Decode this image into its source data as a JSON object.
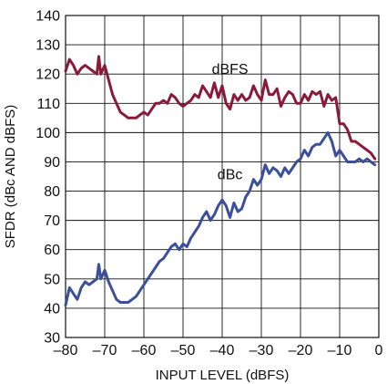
{
  "chart_data": {
    "type": "line",
    "xlabel": "INPUT LEVEL (dBFS)",
    "ylabel": "SFDR (dBc AND dBFS)",
    "xlim": [
      -80,
      0
    ],
    "ylim": [
      30,
      140
    ],
    "xticks": [
      -80,
      -70,
      -60,
      -50,
      -40,
      -30,
      -20,
      -10,
      0
    ],
    "xtick_labels": [
      "–80",
      "–70",
      "–60",
      "–50",
      "–40",
      "–30",
      "–20",
      "–10",
      "0"
    ],
    "yticks": [
      30,
      40,
      50,
      60,
      70,
      80,
      90,
      100,
      110,
      120,
      130,
      140
    ],
    "ytick_labels": [
      "30",
      "40",
      "50",
      "60",
      "70",
      "80",
      "90",
      "100",
      "110",
      "120",
      "130",
      "140"
    ],
    "grid": true,
    "series": [
      {
        "name": "dBFS",
        "color": "#8b1a3a",
        "label_at": [
          -38,
          120
        ],
        "x": [
          -80,
          -79,
          -78,
          -77,
          -76,
          -75,
          -74,
          -73,
          -72,
          -71.5,
          -71,
          -70,
          -69,
          -68,
          -67,
          -66,
          -65,
          -64,
          -63,
          -62,
          -61,
          -60,
          -59,
          -58,
          -57,
          -56,
          -55,
          -54,
          -53,
          -52,
          -51,
          -50,
          -49,
          -48,
          -47,
          -46,
          -45,
          -44,
          -43,
          -42,
          -41,
          -40,
          -39,
          -38,
          -37,
          -36,
          -35,
          -34,
          -33,
          -32,
          -31,
          -30,
          -29,
          -28,
          -27,
          -26,
          -25,
          -24,
          -23,
          -22,
          -21,
          -20,
          -19,
          -18,
          -17,
          -16,
          -15,
          -14,
          -13,
          -12,
          -11,
          -10,
          -9,
          -8,
          -7,
          -6,
          -5,
          -4,
          -3,
          -2,
          -1
        ],
        "y": [
          121,
          125,
          123,
          120,
          122,
          123,
          122,
          121,
          120,
          126,
          120,
          123,
          118,
          113,
          110,
          107,
          106,
          105,
          105,
          105,
          106,
          107,
          106,
          108,
          110,
          110,
          111,
          110,
          113,
          112,
          110,
          109,
          110,
          111,
          113,
          112,
          116,
          114,
          112,
          117,
          112,
          116,
          110,
          108,
          113,
          111,
          113,
          111,
          112,
          116,
          113,
          111,
          118,
          113,
          113,
          115,
          109,
          112,
          114,
          113,
          110,
          110,
          113,
          111,
          114,
          113,
          114,
          109,
          113,
          111,
          112,
          103,
          103,
          101,
          97,
          97,
          96,
          95,
          94,
          93,
          91
        ]
      },
      {
        "name": "dBc",
        "color": "#3c4f9a",
        "label_at": [
          -38,
          84
        ],
        "x": [
          -80,
          -79,
          -78,
          -77,
          -76,
          -75,
          -74,
          -73,
          -72,
          -71.5,
          -71,
          -70,
          -69,
          -68,
          -67,
          -66,
          -65,
          -64,
          -63,
          -62,
          -61,
          -60,
          -59,
          -58,
          -57,
          -56,
          -55,
          -54,
          -53,
          -52,
          -51,
          -50,
          -49,
          -48,
          -47,
          -46,
          -45,
          -44,
          -43,
          -42,
          -41,
          -40,
          -39,
          -38,
          -37,
          -36,
          -35,
          -34,
          -33,
          -32,
          -31,
          -30,
          -29,
          -28,
          -27,
          -26,
          -25,
          -24,
          -23,
          -22,
          -21,
          -20,
          -19,
          -18,
          -17,
          -16,
          -15,
          -14,
          -13,
          -12,
          -11,
          -10,
          -9,
          -8,
          -7,
          -6,
          -5,
          -4,
          -3,
          -2,
          -1
        ],
        "y": [
          41,
          47,
          45,
          43,
          47,
          49,
          48,
          49,
          50,
          55,
          50,
          53,
          49,
          46,
          43,
          42,
          42,
          42,
          43,
          44,
          46,
          48,
          50,
          52,
          54,
          56,
          57,
          59,
          61,
          62,
          60,
          62,
          61,
          64,
          66,
          68,
          71,
          73,
          70,
          72,
          75,
          77,
          75,
          71,
          76,
          73,
          74,
          78,
          80,
          84,
          82,
          84,
          89,
          86,
          88,
          87,
          85,
          88,
          86,
          88,
          90,
          91,
          94,
          92,
          95,
          96,
          96,
          98,
          100,
          97,
          92,
          94,
          92,
          90,
          90,
          90,
          91,
          90,
          91,
          90,
          89
        ]
      }
    ]
  }
}
